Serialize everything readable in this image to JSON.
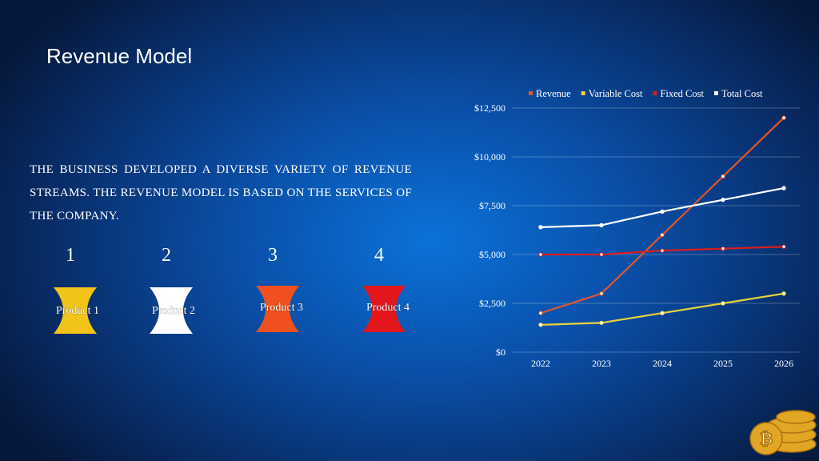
{
  "header": {
    "title": "Revenue Model"
  },
  "body": "THE BUSINESS DEVELOPED A DIVERSE VARIETY OF REVENUE STREAMS. THE REVENUE MODEL IS BASED ON THE SERVICES OF THE COMPANY.",
  "products": [
    {
      "number": "1",
      "label": "Product 1",
      "color": "#f2c418"
    },
    {
      "number": "2",
      "label": "Product 2",
      "color": "#ffffff"
    },
    {
      "number": "3",
      "label": "Product 3",
      "color": "#f0501e"
    },
    {
      "number": "4",
      "label": "Product 4",
      "color": "#e3161c"
    }
  ],
  "chart_data": {
    "type": "line",
    "categories": [
      "2022",
      "2023",
      "2024",
      "2025",
      "2026"
    ],
    "series": [
      {
        "name": "Revenue",
        "color": "#e0562a",
        "values": [
          2000,
          3000,
          6000,
          9000,
          12000
        ]
      },
      {
        "name": "Variable Cost",
        "color": "#e8d33c",
        "values": [
          1400,
          1500,
          2000,
          2500,
          3000
        ]
      },
      {
        "name": "Fixed Cost",
        "color": "#d81e1e",
        "values": [
          5000,
          5000,
          5200,
          5300,
          5400
        ]
      },
      {
        "name": "Total Cost",
        "color": "#ffffff",
        "values": [
          6400,
          6500,
          7200,
          7800,
          8400
        ]
      }
    ],
    "ylim": [
      0,
      12500
    ],
    "yticks": [
      {
        "value": 0,
        "label": "$0"
      },
      {
        "value": 2500,
        "label": "$2,500"
      },
      {
        "value": 5000,
        "label": "$5,000"
      },
      {
        "value": 7500,
        "label": "$7,500"
      },
      {
        "value": 10000,
        "label": "$10,000"
      },
      {
        "value": 12500,
        "label": "$12,500"
      }
    ],
    "grid": true,
    "legend": "top"
  }
}
